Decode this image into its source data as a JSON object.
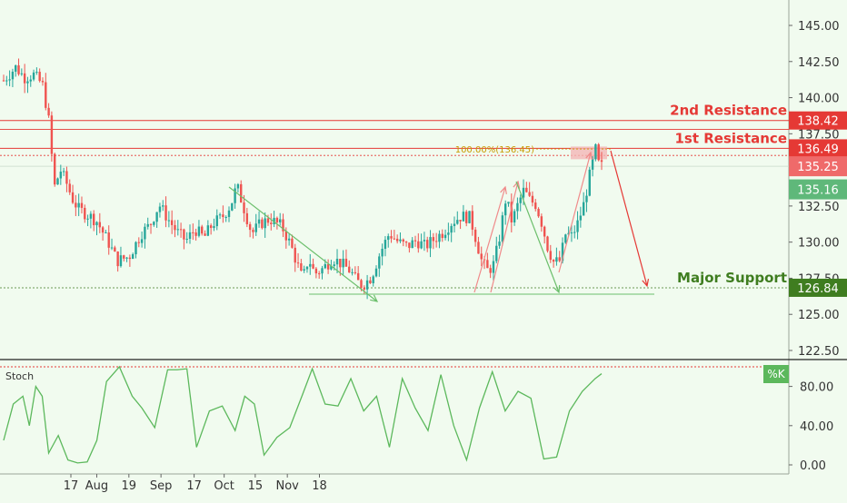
{
  "colors": {
    "background": "#f1fbef",
    "up_candle": "#26a69a",
    "down_candle": "#ef5350",
    "resistance": "#e53935",
    "support": "#3f7d20",
    "stoch_line": "#5cb85c",
    "fib_label": "#c99a00",
    "axis_text": "#333333"
  },
  "chart_data": [
    {
      "type": "candlestick",
      "symbol_name": "",
      "price_axis": {
        "ylim": [
          122.5,
          145.0
        ],
        "ticks": [
          "122.50",
          "125.00",
          "127.50",
          "130.00",
          "132.50",
          "135.00",
          "137.50",
          "140.00",
          "142.50",
          "145.00"
        ]
      },
      "time_axis": {
        "ticks": [
          "17",
          "Aug",
          "19",
          "Sep",
          "17",
          "Oct",
          "15",
          "Nov",
          "18"
        ]
      },
      "levels": [
        {
          "name": "2nd Resistance",
          "value": 138.42,
          "label": "138.42",
          "style": "solid"
        },
        {
          "name": "1st Resistance",
          "value": 136.49,
          "label": "136.49",
          "style": "solid"
        },
        {
          "name": "Major Support",
          "value": 126.84,
          "label": "126.84",
          "style": "dotted"
        }
      ],
      "price_tags": [
        {
          "label": "135.25",
          "value": 135.25,
          "kind": "last-price"
        },
        {
          "label": "135.16",
          "value": 135.16,
          "kind": "green"
        }
      ],
      "fib_label": "100.00%(136.45)",
      "projection": {
        "from": 136.45,
        "to": 126.84
      },
      "close_path": [
        {
          "x": 2,
          "y": 141.2
        },
        {
          "x": 6,
          "y": 142.1
        },
        {
          "x": 9,
          "y": 141.4
        },
        {
          "x": 12,
          "y": 141.6
        },
        {
          "x": 15,
          "y": 140.9
        },
        {
          "x": 17,
          "y": 138.6
        },
        {
          "x": 18,
          "y": 136.2
        },
        {
          "x": 19,
          "y": 133.8
        },
        {
          "x": 21,
          "y": 135.0
        },
        {
          "x": 23,
          "y": 134.1
        },
        {
          "x": 25,
          "y": 133.0
        },
        {
          "x": 27,
          "y": 132.3
        },
        {
          "x": 30,
          "y": 131.9
        },
        {
          "x": 33,
          "y": 131.5
        },
        {
          "x": 37,
          "y": 130.0
        },
        {
          "x": 40,
          "y": 128.7
        },
        {
          "x": 44,
          "y": 129.0
        },
        {
          "x": 48,
          "y": 130.6
        },
        {
          "x": 51,
          "y": 131.2
        },
        {
          "x": 54,
          "y": 132.6
        },
        {
          "x": 57,
          "y": 131.6
        },
        {
          "x": 60,
          "y": 130.7
        },
        {
          "x": 63,
          "y": 130.1
        },
        {
          "x": 66,
          "y": 130.9
        },
        {
          "x": 69,
          "y": 130.3
        },
        {
          "x": 72,
          "y": 131.3
        },
        {
          "x": 75,
          "y": 131.7
        },
        {
          "x": 78,
          "y": 132.6
        },
        {
          "x": 80,
          "y": 133.9
        },
        {
          "x": 82,
          "y": 132.6
        },
        {
          "x": 85,
          "y": 130.6
        },
        {
          "x": 88,
          "y": 131.3
        },
        {
          "x": 91,
          "y": 131.6
        },
        {
          "x": 95,
          "y": 131.1
        },
        {
          "x": 98,
          "y": 129.8
        },
        {
          "x": 100,
          "y": 128.6
        },
        {
          "x": 102,
          "y": 127.4
        },
        {
          "x": 104,
          "y": 128.9
        },
        {
          "x": 106,
          "y": 127.8
        },
        {
          "x": 109,
          "y": 128.2
        },
        {
          "x": 112,
          "y": 128.9
        },
        {
          "x": 115,
          "y": 128.5
        },
        {
          "x": 118,
          "y": 128.0
        },
        {
          "x": 120,
          "y": 127.3
        },
        {
          "x": 122,
          "y": 127.0
        },
        {
          "x": 125,
          "y": 127.6
        },
        {
          "x": 128,
          "y": 129.3
        },
        {
          "x": 131,
          "y": 130.6
        },
        {
          "x": 134,
          "y": 130.0
        },
        {
          "x": 137,
          "y": 129.7
        },
        {
          "x": 140,
          "y": 130.1
        },
        {
          "x": 143,
          "y": 129.7
        },
        {
          "x": 146,
          "y": 130.2
        },
        {
          "x": 149,
          "y": 130.7
        },
        {
          "x": 152,
          "y": 131.4
        },
        {
          "x": 155,
          "y": 131.8
        },
        {
          "x": 158,
          "y": 131.7
        },
        {
          "x": 160,
          "y": 130.2
        },
        {
          "x": 162,
          "y": 128.6
        },
        {
          "x": 164,
          "y": 128.0
        },
        {
          "x": 166,
          "y": 128.5
        },
        {
          "x": 168,
          "y": 130.5
        },
        {
          "x": 170,
          "y": 133.1
        },
        {
          "x": 172,
          "y": 131.4
        },
        {
          "x": 174,
          "y": 132.6
        },
        {
          "x": 176,
          "y": 133.6
        },
        {
          "x": 178,
          "y": 132.9
        },
        {
          "x": 180,
          "y": 132.6
        },
        {
          "x": 182,
          "y": 131.3
        },
        {
          "x": 184,
          "y": 129.6
        },
        {
          "x": 186,
          "y": 128.6
        },
        {
          "x": 188,
          "y": 128.7
        },
        {
          "x": 190,
          "y": 130.6
        },
        {
          "x": 192,
          "y": 130.4
        },
        {
          "x": 194,
          "y": 131.3
        },
        {
          "x": 196,
          "y": 132.6
        },
        {
          "x": 198,
          "y": 134.6
        },
        {
          "x": 200,
          "y": 136.4
        },
        {
          "x": 201,
          "y": 135.4
        },
        {
          "x": 202,
          "y": 135.25
        }
      ],
      "time_tick_positions": [
        {
          "label": "17",
          "x": 0
        },
        {
          "label": "Aug",
          "x": 25
        },
        {
          "label": "19",
          "x": 56
        },
        {
          "label": "Sep",
          "x": 87
        },
        {
          "label": "17",
          "x": 119
        },
        {
          "label": "Oct",
          "x": 148
        },
        {
          "label": "15",
          "x": 178
        },
        {
          "label": "Nov",
          "x": 209
        },
        {
          "label": "18",
          "x": 240
        }
      ]
    },
    {
      "type": "line",
      "name": "Stoch",
      "legend": "%K",
      "ylim": [
        0,
        100
      ],
      "ticks": [
        "0.00",
        "40.00",
        "80.00"
      ],
      "series": [
        {
          "name": "%K",
          "points": [
            {
              "x": 0,
              "y": 25
            },
            {
              "x": 3,
              "y": 62
            },
            {
              "x": 6,
              "y": 70
            },
            {
              "x": 8,
              "y": 40
            },
            {
              "x": 10,
              "y": 80
            },
            {
              "x": 12,
              "y": 70
            },
            {
              "x": 14,
              "y": 12
            },
            {
              "x": 17,
              "y": 30
            },
            {
              "x": 20,
              "y": 5
            },
            {
              "x": 23,
              "y": 2
            },
            {
              "x": 26,
              "y": 3
            },
            {
              "x": 29,
              "y": 25
            },
            {
              "x": 32,
              "y": 85
            },
            {
              "x": 36,
              "y": 102
            },
            {
              "x": 40,
              "y": 70
            },
            {
              "x": 43,
              "y": 58
            },
            {
              "x": 47,
              "y": 38
            },
            {
              "x": 51,
              "y": 97
            },
            {
              "x": 54,
              "y": 97
            },
            {
              "x": 57,
              "y": 98
            },
            {
              "x": 60,
              "y": 18
            },
            {
              "x": 64,
              "y": 55
            },
            {
              "x": 68,
              "y": 60
            },
            {
              "x": 72,
              "y": 35
            },
            {
              "x": 75,
              "y": 70
            },
            {
              "x": 78,
              "y": 62
            },
            {
              "x": 81,
              "y": 10
            },
            {
              "x": 85,
              "y": 28
            },
            {
              "x": 89,
              "y": 38
            },
            {
              "x": 93,
              "y": 72
            },
            {
              "x": 96,
              "y": 98
            },
            {
              "x": 100,
              "y": 62
            },
            {
              "x": 104,
              "y": 60
            },
            {
              "x": 108,
              "y": 88
            },
            {
              "x": 112,
              "y": 55
            },
            {
              "x": 116,
              "y": 70
            },
            {
              "x": 120,
              "y": 18
            },
            {
              "x": 124,
              "y": 88
            },
            {
              "x": 128,
              "y": 58
            },
            {
              "x": 132,
              "y": 35
            },
            {
              "x": 136,
              "y": 92
            },
            {
              "x": 140,
              "y": 40
            },
            {
              "x": 144,
              "y": 5
            },
            {
              "x": 148,
              "y": 58
            },
            {
              "x": 152,
              "y": 95
            },
            {
              "x": 156,
              "y": 55
            },
            {
              "x": 160,
              "y": 75
            },
            {
              "x": 164,
              "y": 68
            },
            {
              "x": 168,
              "y": 6
            },
            {
              "x": 172,
              "y": 8
            },
            {
              "x": 176,
              "y": 55
            },
            {
              "x": 180,
              "y": 75
            },
            {
              "x": 184,
              "y": 88
            },
            {
              "x": 186,
              "y": 93
            }
          ]
        }
      ]
    }
  ]
}
